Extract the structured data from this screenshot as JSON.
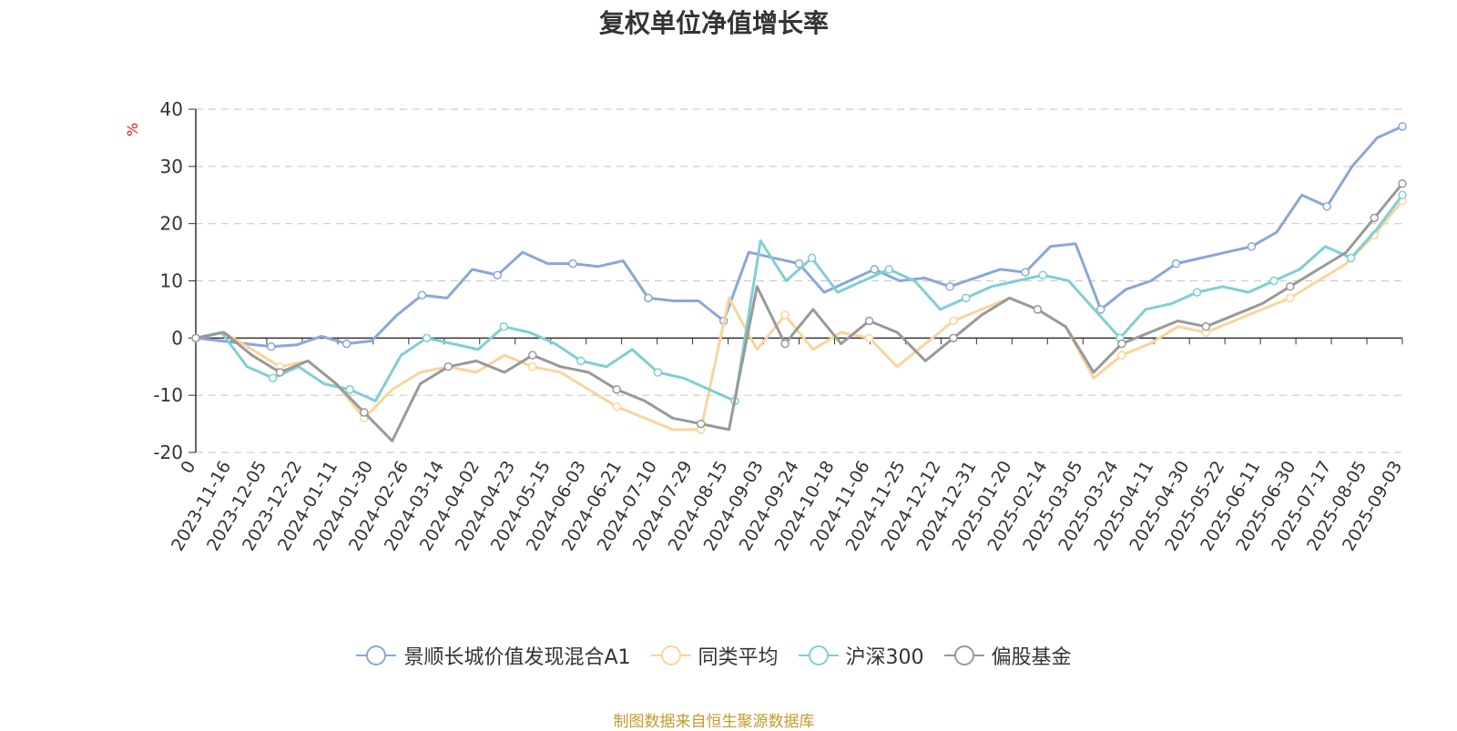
{
  "title": "复权单位净值增长率",
  "y_unit": "%",
  "source_note": "制图数据来自恒生聚源数据库",
  "chart_data": {
    "type": "line",
    "title": "复权单位净值增长率",
    "ylabel": "%",
    "ylim": [
      -20,
      40
    ],
    "y_ticks": [
      40,
      30,
      20,
      10,
      0,
      -10,
      -20
    ],
    "grid": true,
    "legend_position": "bottom",
    "x_ticks": [
      "0",
      "2023-11-16",
      "2023-12-05",
      "2023-12-22",
      "2024-01-11",
      "2024-01-30",
      "2024-02-26",
      "2024-03-14",
      "2024-04-02",
      "2024-04-23",
      "2024-05-15",
      "2024-06-03",
      "2024-06-21",
      "2024-07-10",
      "2024-07-29",
      "2024-08-15",
      "2024-09-03",
      "2024-09-24",
      "2024-10-18",
      "2024-11-06",
      "2024-11-25",
      "2024-12-12",
      "2024-12-31",
      "2025-01-20",
      "2025-02-14",
      "2025-03-05",
      "2025-03-24",
      "2025-04-11",
      "2025-04-30",
      "2025-05-22",
      "2025-06-11",
      "2025-06-30",
      "2025-07-17",
      "2025-08-05",
      "2025-09-03"
    ],
    "series": [
      {
        "name": "景顺长城价值发现混合A1",
        "color": "#8aa7d8",
        "values": [
          0,
          -0.5,
          -1,
          -1.5,
          -1.2,
          0.3,
          -1,
          -0.5,
          4,
          7.5,
          7,
          12,
          11,
          15,
          13,
          13,
          12.5,
          13.5,
          7,
          6.5,
          6.5,
          3,
          15,
          14,
          13,
          8,
          10,
          12,
          10,
          10.5,
          9,
          10.5,
          12,
          11.5,
          16,
          16.5,
          5,
          8.5,
          10,
          13,
          14,
          15,
          16,
          18.5,
          25,
          23,
          30,
          35,
          37
        ]
      },
      {
        "name": "同类平均",
        "color": "#f9d59b",
        "values": [
          0,
          1,
          -2,
          -5,
          -4,
          -8,
          -14,
          -9,
          -6,
          -5,
          -6,
          -3,
          -5,
          -6,
          -9,
          -12,
          -14,
          -16,
          -16,
          7,
          -2,
          4,
          -2,
          1,
          0,
          -5,
          -1,
          3,
          5,
          7,
          5,
          2,
          -7,
          -3,
          -1,
          2,
          1,
          3,
          5,
          7,
          10,
          13,
          18,
          24
        ]
      },
      {
        "name": "沪深300",
        "color": "#7ecfd4",
        "values": [
          0,
          1,
          -5,
          -7,
          -5,
          -8,
          -9,
          -11,
          -3,
          0,
          -1,
          -2,
          2,
          1,
          -1,
          -4,
          -5,
          -2,
          -6,
          -7,
          -9,
          -11,
          17,
          10,
          14,
          8,
          10,
          12,
          10,
          5,
          7,
          9,
          10,
          11,
          10,
          5,
          0,
          5,
          6,
          8,
          9,
          8,
          10,
          12,
          16,
          14,
          19,
          25
        ]
      },
      {
        "name": "偏股基金",
        "color": "#999999",
        "values": [
          0,
          1,
          -3,
          -6,
          -4,
          -8,
          -13,
          -18,
          -8,
          -5,
          -4,
          -6,
          -3,
          -5,
          -6,
          -9,
          -11,
          -14,
          -15,
          -16,
          9,
          -1,
          5,
          -1,
          3,
          1,
          -4,
          0,
          4,
          7,
          5,
          2,
          -6,
          -1,
          1,
          3,
          2,
          4,
          6,
          9,
          12,
          15,
          21,
          27
        ]
      }
    ]
  },
  "legend": [
    {
      "label": "景顺长城价值发现混合A1",
      "color": "#8aa7d8"
    },
    {
      "label": "同类平均",
      "color": "#f9d59b"
    },
    {
      "label": "沪深300",
      "color": "#7ecfd4"
    },
    {
      "label": "偏股基金",
      "color": "#999999"
    }
  ]
}
